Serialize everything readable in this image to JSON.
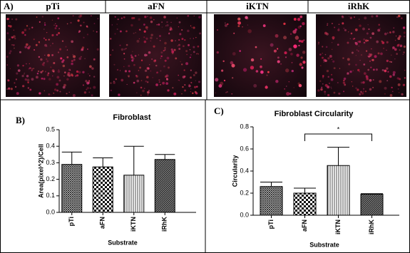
{
  "panel_labels": [
    "A)",
    "B)",
    "C)"
  ],
  "image_labels": [
    "pTi",
    "aFN",
    "iKTN",
    "iRhK"
  ],
  "chart_data": [
    {
      "type": "bar",
      "title": "Fibroblast",
      "x_label": "Substrate",
      "y_label": "Area(pixel^2)/Cell",
      "categories": [
        "pTi",
        "aFN",
        "iKTN",
        "iRhK"
      ],
      "values": [
        0.29,
        0.275,
        0.225,
        0.32
      ],
      "errors": [
        0.075,
        0.055,
        0.175,
        0.03
      ],
      "color": "#000000",
      "ylim": [
        0,
        0.5
      ],
      "yticks": [
        {
          "value": 0,
          "label": "0.0"
        },
        0.1,
        0.2,
        0.3,
        0.4,
        0.5
      ]
    },
    {
      "type": "bar",
      "title": "Fibroblast Circularity",
      "x_label": "Substrate",
      "y_label": "Circularity",
      "categories": [
        "pTi",
        "aFN",
        "iKTN",
        "iRhK"
      ],
      "values": [
        0.26,
        0.2,
        0.45,
        0.19
      ],
      "errors": [
        0.04,
        0.045,
        0.165,
        0.005
      ],
      "color": "#000000",
      "annotation": "*",
      "ylim": [
        0,
        0.8
      ],
      "yticks": [
        {
          "value": 0,
          "label": "0.0"
        },
        0.2,
        0.4,
        0.6,
        0.8
      ]
    }
  ]
}
